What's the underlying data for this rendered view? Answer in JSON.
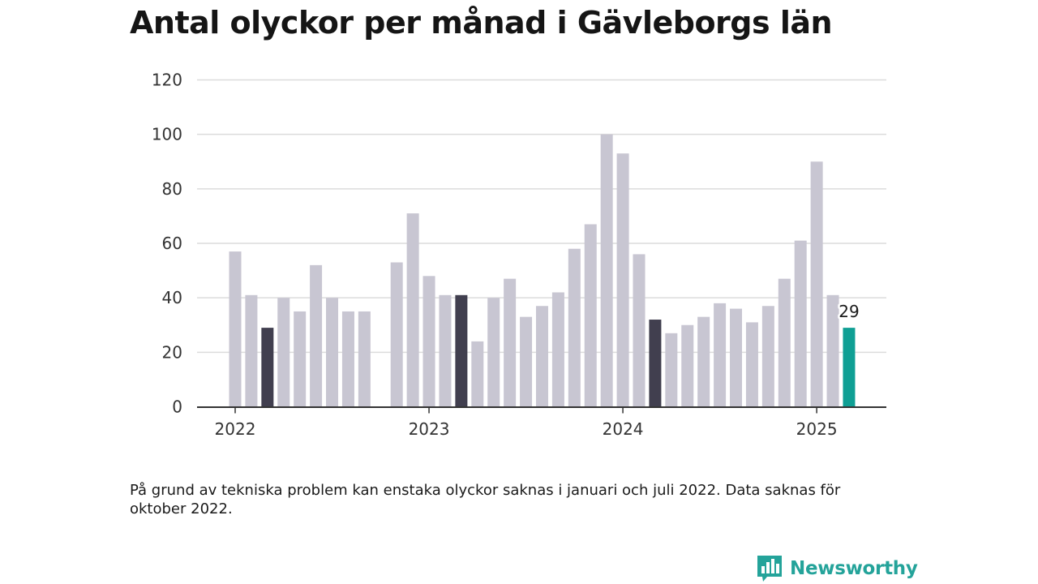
{
  "page": {
    "title": "Antal olyckor per månad i Gävleborgs län",
    "note": "På grund av tekniska problem kan enstaka olyckor saknas i januari och juli 2022. Data saknas för oktober 2022.",
    "brand": "Newsworthy",
    "logo_icon": "newsworthy-bar-chart-logo"
  },
  "chart_data": {
    "type": "bar",
    "title": "Antal olyckor per månad i Gävleborgs län",
    "xlabel": "",
    "ylabel": "",
    "ylim": [
      0,
      120
    ],
    "yticks": [
      0,
      20,
      40,
      60,
      80,
      100,
      120
    ],
    "xtick_labels": [
      {
        "label": "2022",
        "month": "2022-01"
      },
      {
        "label": "2023",
        "month": "2023-01"
      },
      {
        "label": "2024",
        "month": "2024-01"
      },
      {
        "label": "2025",
        "month": "2025-01"
      }
    ],
    "grid": true,
    "categories": [
      "2022-01",
      "2022-02",
      "2022-03",
      "2022-04",
      "2022-05",
      "2022-06",
      "2022-07",
      "2022-08",
      "2022-09",
      "2022-10",
      "2022-11",
      "2022-12",
      "2023-01",
      "2023-02",
      "2023-03",
      "2023-04",
      "2023-05",
      "2023-06",
      "2023-07",
      "2023-08",
      "2023-09",
      "2023-10",
      "2023-11",
      "2023-12",
      "2024-01",
      "2024-02",
      "2024-03",
      "2024-04",
      "2024-05",
      "2024-06",
      "2024-07",
      "2024-08",
      "2024-09",
      "2024-10",
      "2024-11",
      "2024-12",
      "2025-01",
      "2025-02",
      "2025-03"
    ],
    "values": [
      57,
      41,
      29,
      40,
      35,
      52,
      40,
      35,
      35,
      null,
      53,
      71,
      48,
      41,
      41,
      24,
      40,
      47,
      33,
      37,
      42,
      58,
      67,
      100,
      93,
      56,
      32,
      27,
      30,
      33,
      38,
      36,
      31,
      37,
      47,
      61,
      90,
      41,
      29
    ],
    "annotation": {
      "month": "2025-03",
      "text": "29"
    },
    "colors": {
      "default": "#c8c6d2",
      "highlight_march": "#413f4f",
      "current": "#0f9f94",
      "grid": "#dcdcdc",
      "axis": "#333333"
    },
    "highlighted_months": [
      "2022-03",
      "2023-03",
      "2024-03"
    ],
    "current_month": "2025-03"
  }
}
